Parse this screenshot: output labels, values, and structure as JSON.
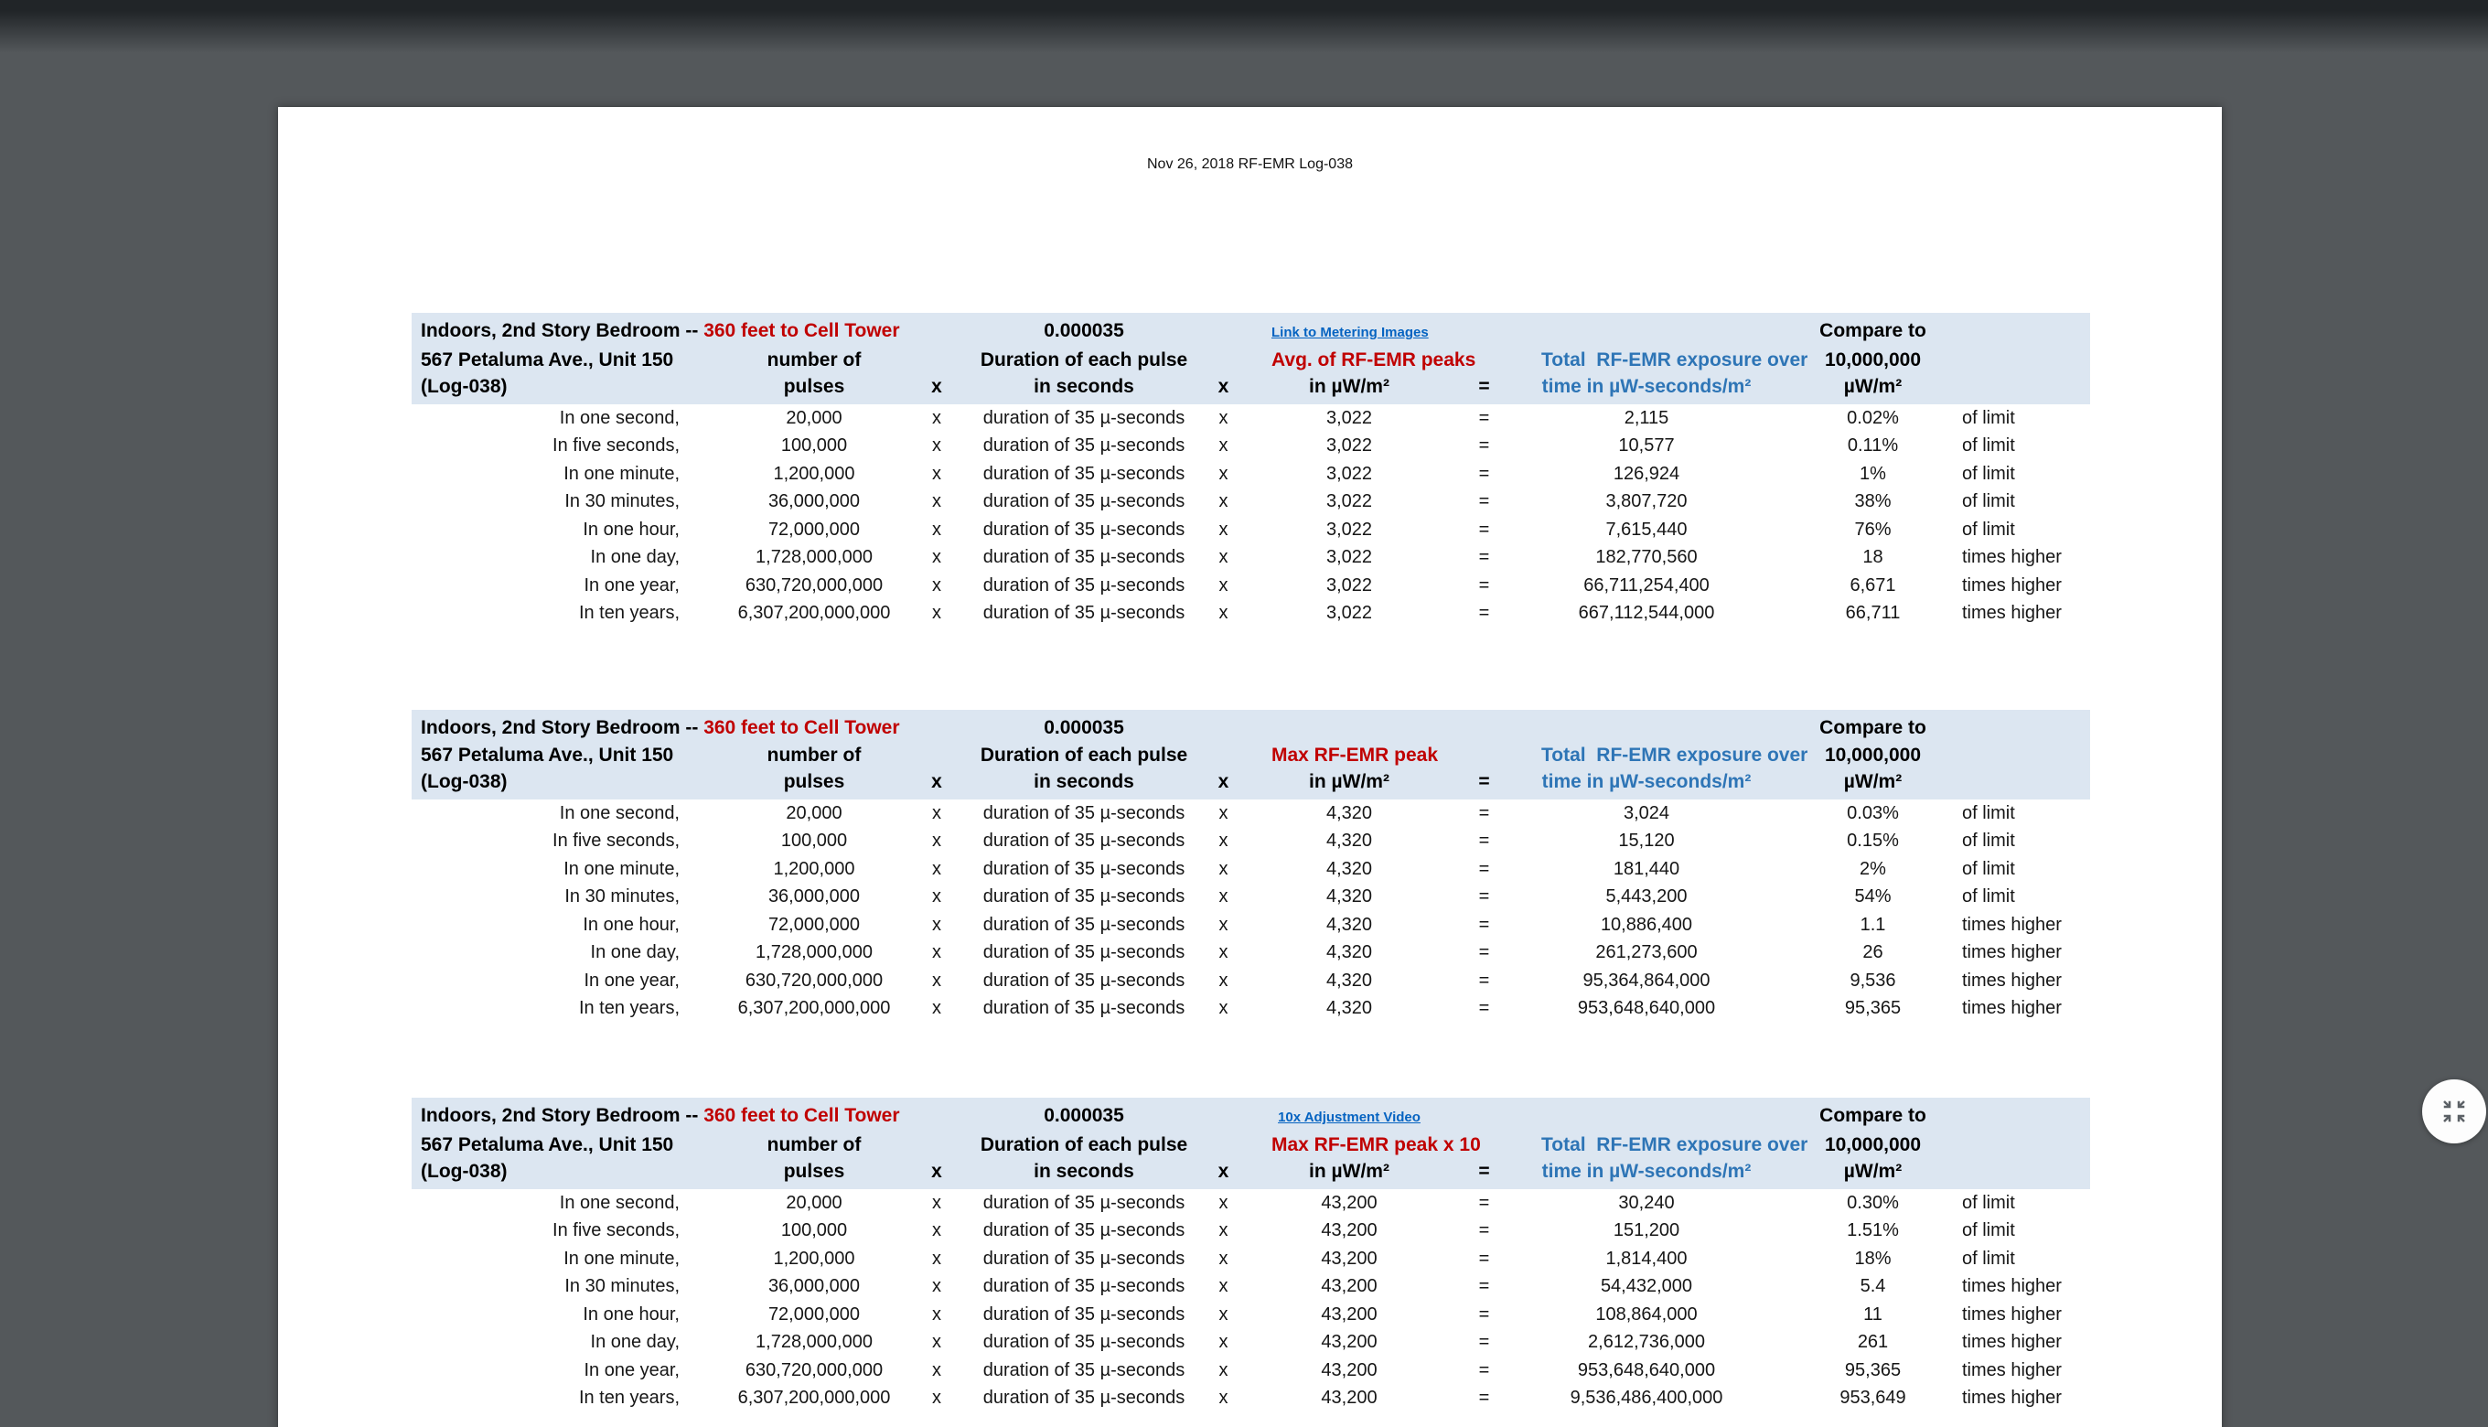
{
  "document": {
    "header": "Nov 26, 2018 RF-EMR Log-038"
  },
  "colors": {
    "background": "#54585b",
    "page": "#ffffff",
    "header_band": "#dce6f1",
    "red_accent": "#c00000",
    "blue_accent": "#2e75b6",
    "link_blue": "#0563c1"
  },
  "fab": {
    "icon": "zoom-in-map"
  },
  "tables": [
    {
      "header": {
        "location_black": "Indoors, 2nd Story Bedroom -- ",
        "location_red": "360 feet to Cell Tower",
        "address": "567 Petaluma Ave., Unit 150",
        "log": "(Log-038)",
        "duration_value": "0.000035",
        "pulses_l1": "number of",
        "pulses_l2": "pulses",
        "x1": "x",
        "duration_l1": "Duration of each pulse",
        "duration_l2": "in seconds",
        "x2": "x",
        "link": "Link to Metering Images",
        "peak_label": "Avg. of RF-EMR peaks",
        "peak_unit": "in µW/m²",
        "eq": "=",
        "total_l1": "Total  RF-EMR exposure over",
        "total_l2": "time in µW-seconds/m²",
        "compare_l1": "Compare to",
        "compare_l2": "10,000,000",
        "compare_l3": "µW/m²"
      },
      "rows": [
        {
          "label": "In one second,",
          "pulses": "20,000",
          "x1": "x",
          "duration": "duration of 35 µ-seconds",
          "x2": "x",
          "peak": "3,022",
          "eq": "=",
          "total": "2,115",
          "compare": "0.02%",
          "suffix": "of limit"
        },
        {
          "label": "In five seconds,",
          "pulses": "100,000",
          "x1": "x",
          "duration": "duration of 35 µ-seconds",
          "x2": "x",
          "peak": "3,022",
          "eq": "=",
          "total": "10,577",
          "compare": "0.11%",
          "suffix": "of limit"
        },
        {
          "label": "In one minute,",
          "pulses": "1,200,000",
          "x1": "x",
          "duration": "duration of 35 µ-seconds",
          "x2": "x",
          "peak": "3,022",
          "eq": "=",
          "total": "126,924",
          "compare": "1%",
          "suffix": "of limit"
        },
        {
          "label": "In 30 minutes,",
          "pulses": "36,000,000",
          "x1": "x",
          "duration": "duration of 35 µ-seconds",
          "x2": "x",
          "peak": "3,022",
          "eq": "=",
          "total": "3,807,720",
          "compare": "38%",
          "suffix": "of limit"
        },
        {
          "label": "In one hour,",
          "pulses": "72,000,000",
          "x1": "x",
          "duration": "duration of 35 µ-seconds",
          "x2": "x",
          "peak": "3,022",
          "eq": "=",
          "total": "7,615,440",
          "compare": "76%",
          "suffix": "of limit"
        },
        {
          "label": "In one day,",
          "pulses": "1,728,000,000",
          "x1": "x",
          "duration": "duration of 35 µ-seconds",
          "x2": "x",
          "peak": "3,022",
          "eq": "=",
          "total": "182,770,560",
          "compare": "18",
          "suffix": "times higher"
        },
        {
          "label": "In one year,",
          "pulses": "630,720,000,000",
          "x1": "x",
          "duration": "duration of 35 µ-seconds",
          "x2": "x",
          "peak": "3,022",
          "eq": "=",
          "total": "66,711,254,400",
          "compare": "6,671",
          "suffix": "times higher"
        },
        {
          "label": "In ten years,",
          "pulses": "6,307,200,000,000",
          "x1": "x",
          "duration": "duration of 35 µ-seconds",
          "x2": "x",
          "peak": "3,022",
          "eq": "=",
          "total": "667,112,544,000",
          "compare": "66,711",
          "suffix": "times higher"
        }
      ]
    },
    {
      "header": {
        "location_black": "Indoors, 2nd Story Bedroom -- ",
        "location_red": "360 feet to Cell Tower",
        "address": "567 Petaluma Ave., Unit 150",
        "log": "(Log-038)",
        "duration_value": "0.000035",
        "pulses_l1": "number of",
        "pulses_l2": "pulses",
        "x1": "x",
        "duration_l1": "Duration of each pulse",
        "duration_l2": "in seconds",
        "x2": "x",
        "link": "",
        "peak_label": "Max RF-EMR peak",
        "peak_unit": "in µW/m²",
        "eq": "=",
        "total_l1": "Total  RF-EMR exposure over",
        "total_l2": "time in µW-seconds/m²",
        "compare_l1": "Compare to",
        "compare_l2": "10,000,000",
        "compare_l3": "µW/m²"
      },
      "rows": [
        {
          "label": "In one second,",
          "pulses": "20,000",
          "x1": "x",
          "duration": "duration of 35 µ-seconds",
          "x2": "x",
          "peak": "4,320",
          "eq": "=",
          "total": "3,024",
          "compare": "0.03%",
          "suffix": "of limit"
        },
        {
          "label": "In five seconds,",
          "pulses": "100,000",
          "x1": "x",
          "duration": "duration of 35 µ-seconds",
          "x2": "x",
          "peak": "4,320",
          "eq": "=",
          "total": "15,120",
          "compare": "0.15%",
          "suffix": "of limit"
        },
        {
          "label": "In one minute,",
          "pulses": "1,200,000",
          "x1": "x",
          "duration": "duration of 35 µ-seconds",
          "x2": "x",
          "peak": "4,320",
          "eq": "=",
          "total": "181,440",
          "compare": "2%",
          "suffix": "of limit"
        },
        {
          "label": "In 30 minutes,",
          "pulses": "36,000,000",
          "x1": "x",
          "duration": "duration of 35 µ-seconds",
          "x2": "x",
          "peak": "4,320",
          "eq": "=",
          "total": "5,443,200",
          "compare": "54%",
          "suffix": "of limit"
        },
        {
          "label": "In one hour,",
          "pulses": "72,000,000",
          "x1": "x",
          "duration": "duration of 35 µ-seconds",
          "x2": "x",
          "peak": "4,320",
          "eq": "=",
          "total": "10,886,400",
          "compare": "1.1",
          "suffix": "times higher"
        },
        {
          "label": "In one day,",
          "pulses": "1,728,000,000",
          "x1": "x",
          "duration": "duration of 35 µ-seconds",
          "x2": "x",
          "peak": "4,320",
          "eq": "=",
          "total": "261,273,600",
          "compare": "26",
          "suffix": "times higher"
        },
        {
          "label": "In one year,",
          "pulses": "630,720,000,000",
          "x1": "x",
          "duration": "duration of 35 µ-seconds",
          "x2": "x",
          "peak": "4,320",
          "eq": "=",
          "total": "95,364,864,000",
          "compare": "9,536",
          "suffix": "times higher"
        },
        {
          "label": "In ten years,",
          "pulses": "6,307,200,000,000",
          "x1": "x",
          "duration": "duration of 35 µ-seconds",
          "x2": "x",
          "peak": "4,320",
          "eq": "=",
          "total": "953,648,640,000",
          "compare": "95,365",
          "suffix": "times higher"
        }
      ]
    },
    {
      "header": {
        "location_black": "Indoors, 2nd Story Bedroom -- ",
        "location_red": "360 feet to Cell Tower",
        "address": "567 Petaluma Ave., Unit 150",
        "log": "(Log-038)",
        "duration_value": "0.000035",
        "pulses_l1": "number of",
        "pulses_l2": "pulses",
        "x1": "x",
        "duration_l1": "Duration of each pulse",
        "duration_l2": "in seconds",
        "x2": "x",
        "link": "10x Adjustment Video",
        "peak_label": "Max RF-EMR peak x 10",
        "peak_unit": "in µW/m²",
        "eq": "=",
        "total_l1": "Total  RF-EMR exposure over",
        "total_l2": "time in µW-seconds/m²",
        "compare_l1": "Compare to",
        "compare_l2": "10,000,000",
        "compare_l3": "µW/m²"
      },
      "rows": [
        {
          "label": "In one second,",
          "pulses": "20,000",
          "x1": "x",
          "duration": "duration of 35 µ-seconds",
          "x2": "x",
          "peak": "43,200",
          "eq": "=",
          "total": "30,240",
          "compare": "0.30%",
          "suffix": "of limit"
        },
        {
          "label": "In five seconds,",
          "pulses": "100,000",
          "x1": "x",
          "duration": "duration of 35 µ-seconds",
          "x2": "x",
          "peak": "43,200",
          "eq": "=",
          "total": "151,200",
          "compare": "1.51%",
          "suffix": "of limit"
        },
        {
          "label": "In one minute,",
          "pulses": "1,200,000",
          "x1": "x",
          "duration": "duration of 35 µ-seconds",
          "x2": "x",
          "peak": "43,200",
          "eq": "=",
          "total": "1,814,400",
          "compare": "18%",
          "suffix": "of limit"
        },
        {
          "label": "In 30 minutes,",
          "pulses": "36,000,000",
          "x1": "x",
          "duration": "duration of 35 µ-seconds",
          "x2": "x",
          "peak": "43,200",
          "eq": "=",
          "total": "54,432,000",
          "compare": "5.4",
          "suffix": "times higher"
        },
        {
          "label": "In one hour,",
          "pulses": "72,000,000",
          "x1": "x",
          "duration": "duration of 35 µ-seconds",
          "x2": "x",
          "peak": "43,200",
          "eq": "=",
          "total": "108,864,000",
          "compare": "11",
          "suffix": "times higher"
        },
        {
          "label": "In one day,",
          "pulses": "1,728,000,000",
          "x1": "x",
          "duration": "duration of 35 µ-seconds",
          "x2": "x",
          "peak": "43,200",
          "eq": "=",
          "total": "2,612,736,000",
          "compare": "261",
          "suffix": "times higher"
        },
        {
          "label": "In one year,",
          "pulses": "630,720,000,000",
          "x1": "x",
          "duration": "duration of 35 µ-seconds",
          "x2": "x",
          "peak": "43,200",
          "eq": "=",
          "total": "953,648,640,000",
          "compare": "95,365",
          "suffix": "times higher"
        },
        {
          "label": "In ten years,",
          "pulses": "6,307,200,000,000",
          "x1": "x",
          "duration": "duration of 35 µ-seconds",
          "x2": "x",
          "peak": "43,200",
          "eq": "=",
          "total": "9,536,486,400,000",
          "compare": "953,649",
          "suffix": "times higher"
        }
      ]
    }
  ]
}
